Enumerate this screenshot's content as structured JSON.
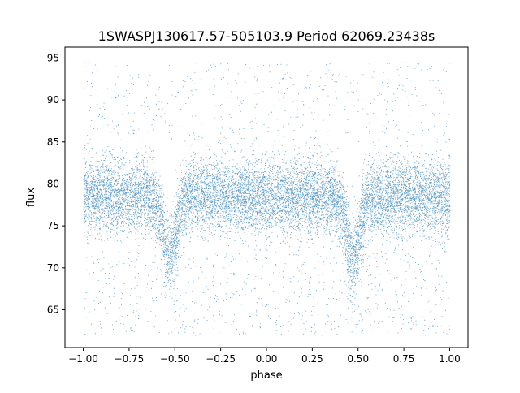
{
  "chart_data": {
    "type": "scatter",
    "title": "1SWASPJ130617.57-505103.9 Period 62069.23438s",
    "xlabel": "phase",
    "ylabel": "flux",
    "xlim": [
      -1.1,
      1.1
    ],
    "ylim": [
      60.5,
      96.3
    ],
    "x_ticks": [
      {
        "value": -1.0,
        "label": "−1.00"
      },
      {
        "value": -0.75,
        "label": "−0.75"
      },
      {
        "value": -0.5,
        "label": "−0.50"
      },
      {
        "value": -0.25,
        "label": "−0.25"
      },
      {
        "value": 0.0,
        "label": "0.00"
      },
      {
        "value": 0.25,
        "label": "0.25"
      },
      {
        "value": 0.5,
        "label": "0.50"
      },
      {
        "value": 0.75,
        "label": "0.75"
      },
      {
        "value": 1.0,
        "label": "1.00"
      }
    ],
    "y_ticks": [
      {
        "value": 65,
        "label": "65"
      },
      {
        "value": 70,
        "label": "70"
      },
      {
        "value": 75,
        "label": "75"
      },
      {
        "value": 80,
        "label": "80"
      },
      {
        "value": 85,
        "label": "85"
      },
      {
        "value": 90,
        "label": "90"
      },
      {
        "value": 95,
        "label": "95"
      }
    ],
    "grid": false,
    "legend": "none",
    "marker_color": "#1f77b4",
    "series": [
      {
        "x_range": [
          -1.0,
          1.0
        ],
        "baseline_flux": 78.5,
        "scatter_sigma": 2.3,
        "eclipse_minima": [
          {
            "phase": -0.53,
            "flux": 70.0
          },
          {
            "phase": 0.47,
            "flux": 70.0
          }
        ],
        "sample_points": [
          {
            "x": -0.53,
            "y": 70.5
          },
          {
            "x": 0.47,
            "y": 70.3
          },
          {
            "x": -0.7,
            "y": 64.0
          },
          {
            "x": 0.28,
            "y": 64.2
          },
          {
            "x": -0.95,
            "y": 93.5
          },
          {
            "x": 0.9,
            "y": 94.0
          }
        ]
      }
    ]
  }
}
